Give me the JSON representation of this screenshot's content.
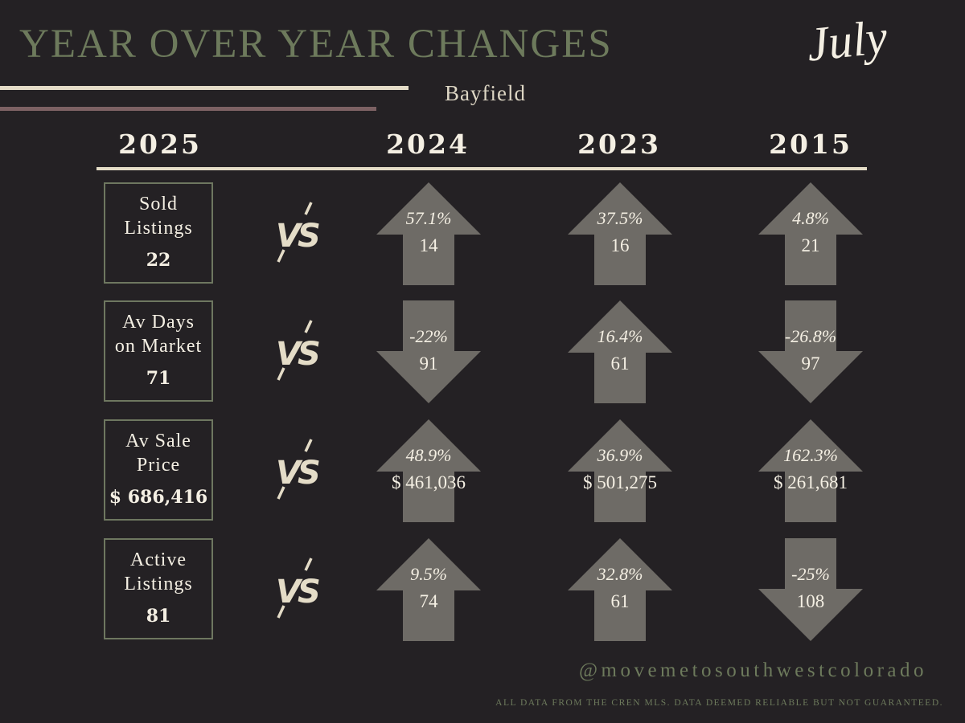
{
  "header": {
    "title": "YEAR OVER YEAR CHANGES",
    "month": "July",
    "area": "Bayfield"
  },
  "years": {
    "current": "2025",
    "comparisons": [
      "2024",
      "2023",
      "2015"
    ]
  },
  "vs_label": "VS",
  "colors": {
    "background": "#242124",
    "title": "#6d7a5c",
    "arrow": "#6e6b66",
    "cream": "#e4dcc7",
    "mauve": "#7c6163"
  },
  "rows": [
    {
      "label": "Sold\nListings",
      "value": "22",
      "comparisons": [
        {
          "pct": "57.1%",
          "value": "14",
          "direction": "up"
        },
        {
          "pct": "37.5%",
          "value": "16",
          "direction": "up"
        },
        {
          "pct": "4.8%",
          "value": "21",
          "direction": "up"
        }
      ]
    },
    {
      "label": "Av Days\non Market",
      "value": "71",
      "comparisons": [
        {
          "pct": "-22%",
          "value": "91",
          "direction": "down"
        },
        {
          "pct": "16.4%",
          "value": "61",
          "direction": "up"
        },
        {
          "pct": "-26.8%",
          "value": "97",
          "direction": "down"
        }
      ]
    },
    {
      "label": "Av Sale\nPrice",
      "value": "$ 686,416",
      "comparisons": [
        {
          "pct": "48.9%",
          "value": "$ 461,036",
          "direction": "up"
        },
        {
          "pct": "36.9%",
          "value": "$ 501,275",
          "direction": "up"
        },
        {
          "pct": "162.3%",
          "value": "$ 261,681",
          "direction": "up"
        }
      ]
    },
    {
      "label": "Active\nListings",
      "value": "81",
      "comparisons": [
        {
          "pct": "9.5%",
          "value": "74",
          "direction": "up"
        },
        {
          "pct": "32.8%",
          "value": "61",
          "direction": "up"
        },
        {
          "pct": "-25%",
          "value": "108",
          "direction": "down"
        }
      ]
    }
  ],
  "footer": {
    "handle": "@movemetosouthwestcolorado",
    "disclaimer": "ALL DATA FROM THE CREN MLS. DATA DEEMED RELIABLE BUT NOT GUARANTEED."
  }
}
